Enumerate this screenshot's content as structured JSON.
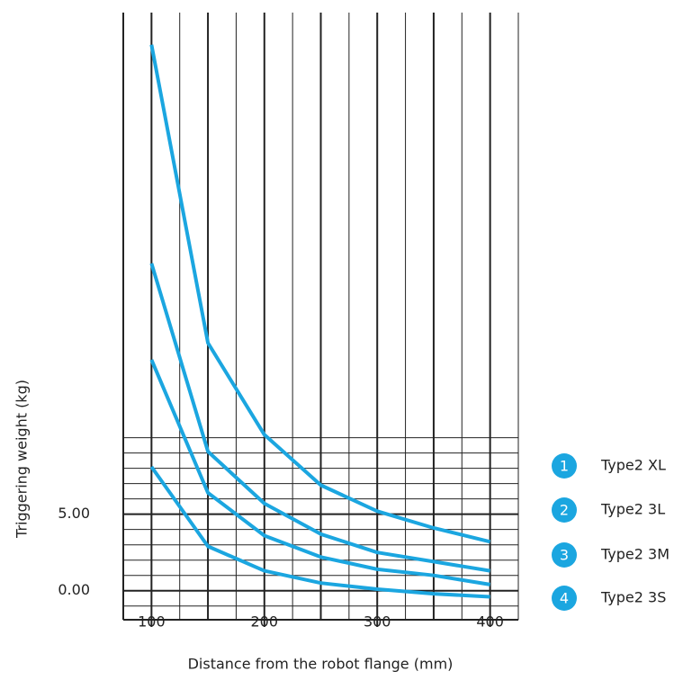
{
  "chart_data": {
    "type": "line",
    "xlabel": "Distance from the robot flange (mm)",
    "ylabel": "Triggering weight (kg)",
    "x": [
      100,
      150,
      200,
      250,
      300,
      350,
      400
    ],
    "series": [
      {
        "name": "Type2 XL",
        "number": "1",
        "color": "#1ba6e0",
        "values": [
          35.7,
          16.2,
          10.2,
          6.9,
          5.2,
          4.1,
          3.2
        ]
      },
      {
        "name": "Type2 3L",
        "number": "2",
        "color": "#1ba6e0",
        "values": [
          21.4,
          9.1,
          5.7,
          3.7,
          2.5,
          1.9,
          1.3
        ]
      },
      {
        "name": "Type2 3M",
        "number": "3",
        "color": "#1ba6e0",
        "values": [
          15.1,
          6.4,
          3.6,
          2.2,
          1.4,
          1.0,
          0.4
        ]
      },
      {
        "name": "Type2 3S",
        "number": "4",
        "color": "#1ba6e0",
        "values": [
          8.1,
          2.9,
          1.3,
          0.5,
          0.1,
          -0.2,
          -0.4
        ]
      }
    ],
    "xlim": [
      75,
      425
    ],
    "xticks": [
      100,
      200,
      300,
      400
    ],
    "xgrid": [
      75,
      100,
      125,
      150,
      175,
      200,
      225,
      250,
      275,
      300,
      325,
      350,
      375,
      400,
      425
    ],
    "ylim": [
      -1.9,
      37.8
    ],
    "yticks": [
      {
        "value": 0,
        "label": "0.00"
      },
      {
        "value": 5,
        "label": "5.00"
      }
    ],
    "ygrid": [
      -1,
      0,
      1,
      2,
      3,
      4,
      5,
      6,
      7,
      8,
      9,
      10
    ],
    "grid": true,
    "legend": "right"
  }
}
